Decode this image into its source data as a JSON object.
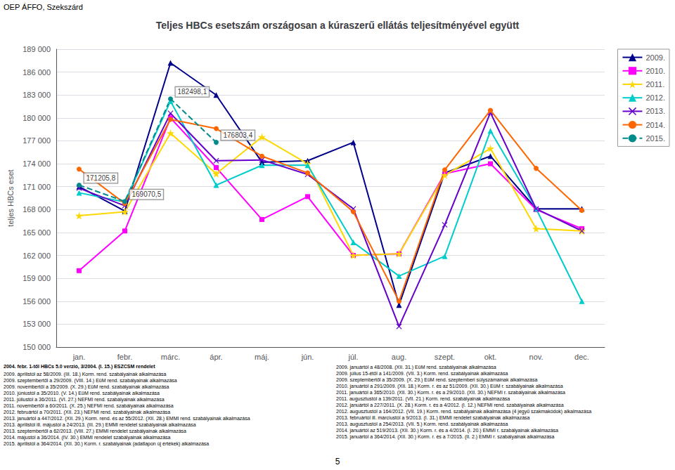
{
  "chart_data": {
    "type": "line",
    "title": "Teljes HBCs esetszám országosan a kúraszerű ellátás teljesítményével együtt",
    "top_left_label": "OEP ÁFFO, Szekszárd",
    "y_label": "teljes HBCs eset",
    "categories": [
      "jan.",
      "febr.",
      "márc.",
      "ápr.",
      "máj.",
      "jún.",
      "júl.",
      "aug.",
      "szept.",
      "okt.",
      "nov.",
      "dec."
    ],
    "series": [
      {
        "name": "2009.",
        "color": "#00008B",
        "marker": "triangle",
        "line_style": "solid",
        "values": [
          171000,
          167800,
          187200,
          183000,
          174200,
          174400,
          176800,
          155500,
          172800,
          175000,
          168100,
          168100
        ]
      },
      {
        "name": "2010.",
        "color": "#FF00FF",
        "marker": "square",
        "line_style": "solid",
        "values": [
          160000,
          165200,
          180000,
          173500,
          166700,
          169700,
          162000,
          162200,
          172700,
          174000,
          168000,
          165500
        ]
      },
      {
        "name": "2011.",
        "color": "#FFD700",
        "marker": "star",
        "line_style": "solid",
        "values": [
          167200,
          167700,
          178000,
          172700,
          177500,
          174000,
          162000,
          162200,
          172500,
          176000,
          165500,
          165200
        ]
      },
      {
        "name": "2012.",
        "color": "#00CCCC",
        "marker": "triangle",
        "line_style": "solid",
        "values": [
          170200,
          169000,
          182200,
          171200,
          173800,
          173800,
          163700,
          159300,
          161900,
          178300,
          168100,
          156000
        ]
      },
      {
        "name": "2013.",
        "color": "#6600CC",
        "marker": "x",
        "line_style": "solid",
        "values": [
          170800,
          168500,
          180600,
          174400,
          174500,
          172600,
          168100,
          152700,
          166000,
          180700,
          168100,
          165200
        ]
      },
      {
        "name": "2014.",
        "color": "#FF6600",
        "marker": "circle",
        "line_style": "solid",
        "values": [
          173300,
          168800,
          179800,
          178600,
          175000,
          172800,
          167700,
          156000,
          173200,
          181000,
          173400,
          167900
        ]
      },
      {
        "name": "2015.",
        "color": "#008B8B",
        "marker": "circle",
        "line_style": "dashed",
        "values": [
          171205.8,
          169070.5,
          182498.1,
          176803.4,
          null,
          null,
          null,
          null,
          null,
          null,
          null,
          null
        ]
      }
    ],
    "annotations": [
      {
        "text": "182498,1",
        "x": "márc.",
        "y": 182498.1
      },
      {
        "text": "176803,4",
        "x": "ápr.",
        "y": 176803.4
      },
      {
        "text": "171205,8",
        "x": "jan.",
        "y": 171205.8
      },
      {
        "text": "169070,5",
        "x": "febr.",
        "y": 169070.5
      }
    ],
    "ylim": [
      150000,
      189000
    ],
    "yticks": [
      {
        "value": 150000,
        "label": "150 000"
      },
      {
        "value": 153000,
        "label": "153 000"
      },
      {
        "value": 156000,
        "label": "156 000"
      },
      {
        "value": 159000,
        "label": "159 000"
      },
      {
        "value": 162000,
        "label": "162 000"
      },
      {
        "value": 165000,
        "label": "165 000"
      },
      {
        "value": 168000,
        "label": "168 000"
      },
      {
        "value": 171000,
        "label": "171 000"
      },
      {
        "value": 174000,
        "label": "174 000"
      },
      {
        "value": 177000,
        "label": "177 000"
      },
      {
        "value": 180000,
        "label": "180 000"
      },
      {
        "value": 183000,
        "label": "183 000"
      },
      {
        "value": 186000,
        "label": "186 000"
      },
      {
        "value": 189000,
        "label": "189 000"
      }
    ],
    "grid": true,
    "legend": "upper right",
    "footnote_left_bold": "2004. febr. 1-től HBCs 5.0 verzió, 3/2004. (I. 15.) ESZCSM rendelet",
    "footnotes_left": [
      "2009. áprilistól az 58/2009. (III. 18.) Korm. rend. szabályainak alkalmazása",
      "2009. szeptembertől a 29/2009. (VIII. 14.) EüM rend. szabályainak alkalmazása",
      "2009. novembertől a 35/2009. (X. 29.) EüM rend. szabályainak alkalmazása",
      "2010. júniustól a 35/2010. (V. 14.) EüM rend. szabályainak alkalmazása",
      "2011. júliustól a 36/2011. (VI. 27.) NEFMI rend. szabályainak alkalmazása",
      "2011. novembertől a 60/2011. (X. 25.) NEFMI rend. szabályainak alkalmazása",
      "2012. februártól a 70/2011. (XII. 23.) NEFMI rend. szabályainak alkalmazása",
      "2013. januártól a 447/2012. (XII. 29.) Korm. rend. és az 55/2012. (XII. 28.) EMMI rend. szabályainak alkalmazása",
      "2013. áprilistól ill. májustól a 24/2013. (III. 29.) EMMI rendelet szabályainak alkalmazása",
      "2013. szeptembertől a 62/2013. (VIII. 27.) EMMI rendelet szabályainak alkalmazása",
      "2014. májustól a 36/2014. (IV. 30.) EMMI rendelet szabályainak alkalmazása",
      "2015. áprilistól a 364/2014. (XII. 30.) Korm. r. szabályainak (adatlapon új értékek) alkalmazása"
    ],
    "footnotes_right": [
      "2009. januártól a 48/2008. (XII. 31.) EüM rend. szabályainak alkalmazása",
      "2009. július 15-étől a 141/2009. (VII. 3.) Korm. rend. szabályainak alkalmazása",
      "2009. szeptembertől a 35/2009. (X. 29.) EüM rend. szeptemberi súlyszámainak alkalmazása",
      "2010. januártól a 291/2009. (XII. 18.) Korm. r. és az 51/2009. (XII. 30.) EüM r. szabályainak alkalmazása",
      "2011. januártól a 365/2010. (XII. 30.) Korm. r. és a 29/2010. (XII. 30.) NEFMI r. szabályainak alkalmazása",
      "2011. augusztustól a 139/2011. (VII. 21.) Korm. rend. szabályainak alkalmazása",
      "2012. januártól a 227/2011. (X. 28.) Korm. r. és a 4/2012. (I. 12.) NEFMI rend. szabályainak alkalmazása",
      "2012. augusztustól a 164/2012. (VII. 19.) Korm. rend. szabályainak alkalmazása (4 jegyű szakmakódok) alkalmazása",
      "2013. februártól ill. márciustól a 9/2013. (I. 31.) EMMI rendelet szabályainak alkalmazása",
      "2013. augusztustól a 254/2013. (VII. 5.) Korm. rend. szabályainak alkalmazása",
      "2014. januártól az 519/2013. (XII. 30.) Korm. r. és a 4/2014. (I. 20.) EMMI r. szabályainak alkalmazása",
      "2015. januártól a 364/2014. (XII. 30.) Korm. r. és a 7/2015. (II. 2.) EMMI r. szabályainak alkalmazása"
    ],
    "page_number": "5"
  }
}
